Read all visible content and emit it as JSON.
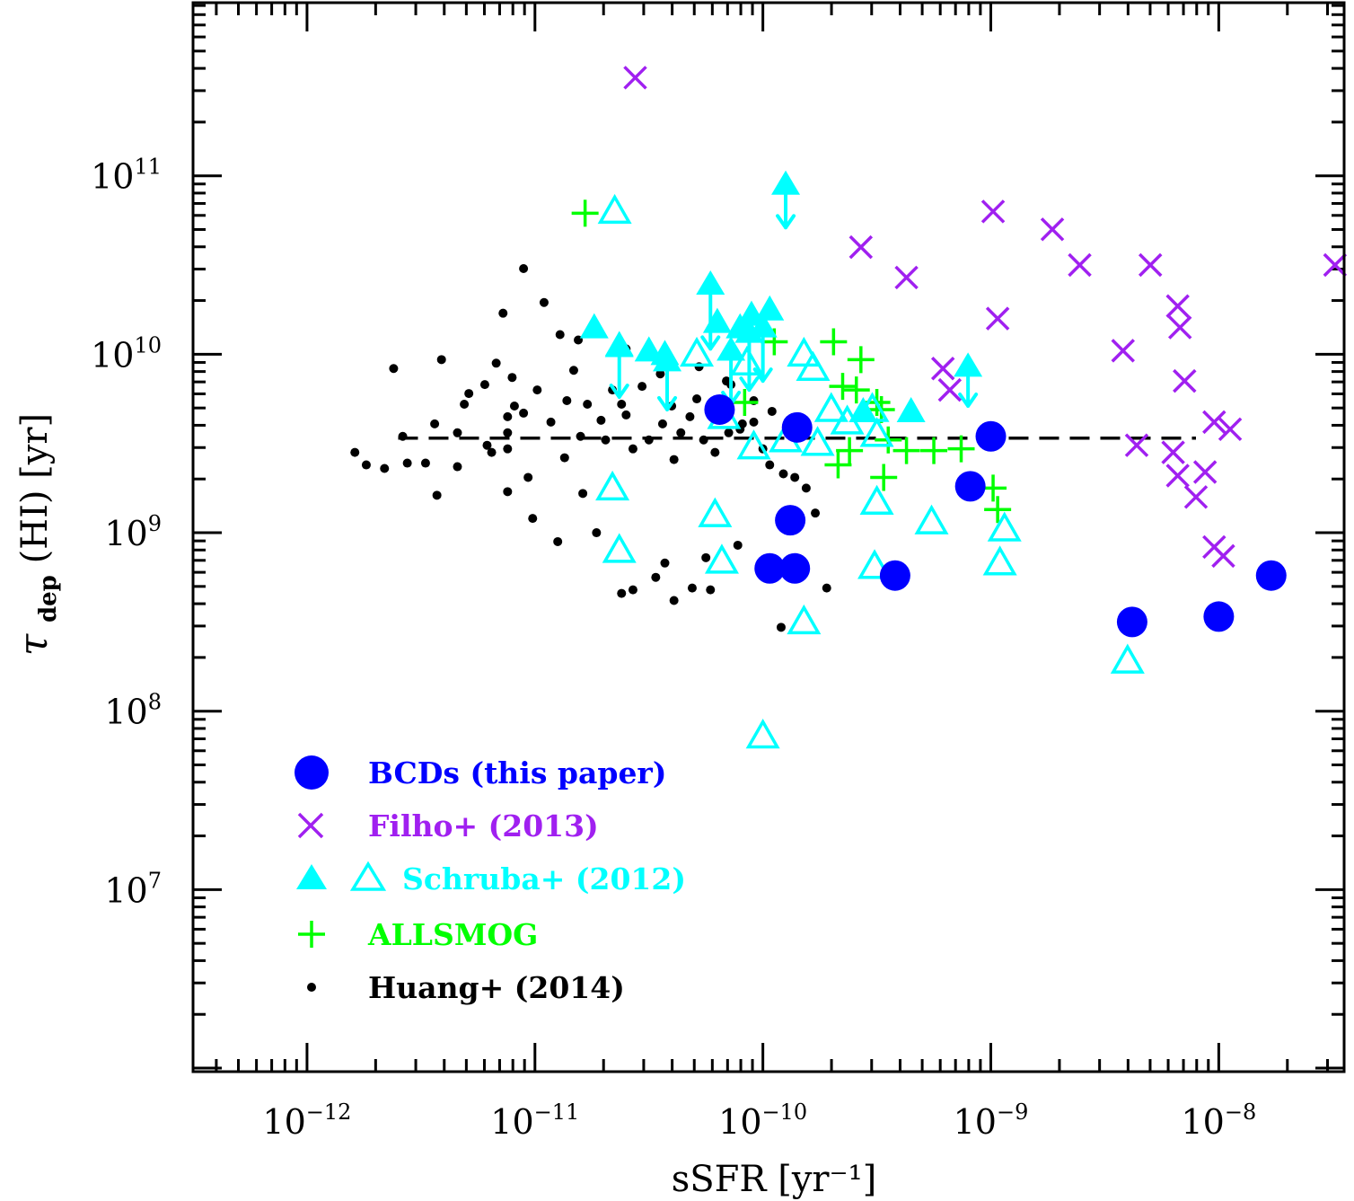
{
  "chart_data": {
    "type": "scatter",
    "title": "",
    "xlabel": "sSFR [yr⁻¹]",
    "ylabel": "τdep (HI) [yr]",
    "ylabel_parts": {
      "symbol": "τ",
      "subscript": "dep",
      "rest": " (HI) [yr]"
    },
    "x_scale": "log",
    "y_scale": "log",
    "xlim_log10": [
      -12.5,
      -7.45
    ],
    "ylim_log10": [
      5.98,
      11.97
    ],
    "x_ticks": [
      {
        "exp": -12,
        "base": "10",
        "sup": "−12"
      },
      {
        "exp": -11,
        "base": "10",
        "sup": "−11"
      },
      {
        "exp": -10,
        "base": "10",
        "sup": "−10"
      },
      {
        "exp": -9,
        "base": "10",
        "sup": "−9"
      },
      {
        "exp": -8,
        "base": "10",
        "sup": "−8"
      }
    ],
    "y_ticks": [
      {
        "exp": 7,
        "base": "10",
        "sup": "7"
      },
      {
        "exp": 8,
        "base": "10",
        "sup": "8"
      },
      {
        "exp": 9,
        "base": "10",
        "sup": "9"
      },
      {
        "exp": 10,
        "base": "10",
        "sup": "10"
      },
      {
        "exp": 11,
        "base": "10",
        "sup": "11"
      }
    ],
    "reference_line": {
      "style": "dashed",
      "log_y": 9.53,
      "log_x_range": [
        -11.6,
        -8.1
      ]
    },
    "legend_position": "bottom-left",
    "series": [
      {
        "name": "BCDs (this paper)",
        "color": "#0000ff",
        "marker": "filled-circle",
        "points_log": [
          [
            -10.19,
            9.69
          ],
          [
            -9.85,
            9.59
          ],
          [
            -9.0,
            9.54
          ],
          [
            -9.09,
            9.26
          ],
          [
            -9.88,
            9.07
          ],
          [
            -9.97,
            8.8
          ],
          [
            -9.86,
            8.8
          ],
          [
            -9.42,
            8.76
          ],
          [
            -8.38,
            8.5
          ],
          [
            -8.0,
            8.53
          ],
          [
            -7.77,
            8.76
          ]
        ]
      },
      {
        "name": "Filho+ (2013)",
        "color": "#a020f0",
        "marker": "x",
        "points_log": [
          [
            -10.56,
            11.55
          ],
          [
            -8.99,
            10.8
          ],
          [
            -8.73,
            10.7
          ],
          [
            -9.57,
            10.6
          ],
          [
            -9.37,
            10.43
          ],
          [
            -8.61,
            10.5
          ],
          [
            -8.3,
            10.5
          ],
          [
            -7.49,
            10.5
          ],
          [
            -8.97,
            10.2
          ],
          [
            -8.18,
            10.27
          ],
          [
            -8.17,
            10.15
          ],
          [
            -9.21,
            9.92
          ],
          [
            -8.42,
            10.02
          ],
          [
            -8.15,
            9.85
          ],
          [
            -9.18,
            9.8
          ],
          [
            -8.02,
            9.62
          ],
          [
            -7.95,
            9.58
          ],
          [
            -8.36,
            9.49
          ],
          [
            -8.2,
            9.45
          ],
          [
            -8.06,
            9.34
          ],
          [
            -8.18,
            9.32
          ],
          [
            -8.1,
            9.2
          ],
          [
            -8.02,
            8.92
          ],
          [
            -7.98,
            8.87
          ]
        ]
      },
      {
        "name": "Schruba+ (2012) open",
        "color": "#00ffff",
        "marker": "open-triangle",
        "points_log": [
          [
            -10.65,
            10.8
          ],
          [
            -10.29,
            10.0
          ],
          [
            -10.17,
            9.65
          ],
          [
            -10.07,
            9.95
          ],
          [
            -9.82,
            10.0
          ],
          [
            -9.78,
            9.92
          ],
          [
            -9.76,
            9.5
          ],
          [
            -9.63,
            9.62
          ],
          [
            -9.52,
            9.69
          ],
          [
            -9.5,
            9.55
          ],
          [
            -10.66,
            9.25
          ],
          [
            -10.21,
            9.1
          ],
          [
            -9.5,
            9.17
          ],
          [
            -9.26,
            9.06
          ],
          [
            -10.63,
            8.9
          ],
          [
            -10.18,
            8.84
          ],
          [
            -9.51,
            8.81
          ],
          [
            -8.96,
            8.83
          ],
          [
            -8.94,
            9.02
          ],
          [
            -9.82,
            8.5
          ],
          [
            -8.4,
            8.28
          ],
          [
            -10.0,
            7.86
          ],
          [
            -9.9,
            9.52
          ],
          [
            -9.7,
            9.69
          ],
          [
            -10.04,
            9.48
          ]
        ]
      },
      {
        "name": "Schruba+ (2012) filled",
        "color": "#00ffff",
        "marker": "filled-triangle",
        "points_log": [
          [
            -10.74,
            10.15
          ],
          [
            -10.63,
            10.05
          ],
          [
            -10.5,
            10.02
          ],
          [
            -10.43,
            10.0
          ],
          [
            -10.1,
            10.15
          ],
          [
            -10.2,
            10.18
          ],
          [
            -10.05,
            10.22
          ],
          [
            -9.97,
            10.25
          ],
          [
            -9.56,
            9.68
          ],
          [
            -9.35,
            9.68
          ]
        ]
      },
      {
        "name": "Schruba+ (2012) limits",
        "color": "#00ffff",
        "marker": "upper-limit",
        "points_log": [
          [
            -10.63,
            10.12,
            9.76
          ],
          [
            -10.42,
            10.04,
            9.69
          ],
          [
            -10.23,
            10.47,
            10.03
          ],
          [
            -10.14,
            10.1,
            9.72
          ],
          [
            -10.06,
            10.2,
            9.8
          ],
          [
            -10.0,
            10.23,
            9.85
          ],
          [
            -9.9,
            11.03,
            10.71
          ],
          [
            -9.1,
            10.01,
            9.71
          ]
        ]
      },
      {
        "name": "ALLSMOG",
        "color": "#00ff00",
        "marker": "plus",
        "points_log": [
          [
            -10.78,
            10.79
          ],
          [
            -10.08,
            9.73
          ],
          [
            -9.95,
            10.07
          ],
          [
            -9.69,
            10.07
          ],
          [
            -9.57,
            9.97
          ],
          [
            -9.65,
            9.82
          ],
          [
            -9.59,
            9.8
          ],
          [
            -9.5,
            9.73
          ],
          [
            -9.48,
            9.69
          ],
          [
            -9.62,
            9.46
          ],
          [
            -9.45,
            9.52
          ],
          [
            -9.67,
            9.38
          ],
          [
            -9.47,
            9.31
          ],
          [
            -9.37,
            9.46
          ],
          [
            -9.25,
            9.46
          ],
          [
            -9.13,
            9.47
          ],
          [
            -8.99,
            9.25
          ],
          [
            -8.97,
            9.13
          ]
        ]
      },
      {
        "name": "Huang+ (2014)",
        "color": "#000000",
        "marker": "dot",
        "points_log": [
          [
            -11.62,
            9.92
          ],
          [
            -11.41,
            9.97
          ],
          [
            -11.31,
            9.72
          ],
          [
            -11.48,
            9.39
          ],
          [
            -11.34,
            9.56
          ],
          [
            -11.19,
            9.45
          ],
          [
            -11.21,
            9.49
          ],
          [
            -11.17,
            9.95
          ],
          [
            -11.12,
            9.47
          ],
          [
            -11.12,
            9.65
          ],
          [
            -11.09,
            9.71
          ],
          [
            -11.05,
            9.67
          ],
          [
            -11.12,
            9.56
          ],
          [
            -11.03,
            9.31
          ],
          [
            -11.05,
            10.48
          ],
          [
            -11.14,
            10.23
          ],
          [
            -10.96,
            10.29
          ],
          [
            -10.93,
            9.62
          ],
          [
            -10.89,
            10.11
          ],
          [
            -10.81,
            10.08
          ],
          [
            -10.83,
            9.91
          ],
          [
            -10.77,
            9.72
          ],
          [
            -10.69,
            9.52
          ],
          [
            -10.57,
            9.47
          ],
          [
            -10.5,
            9.52
          ],
          [
            -10.44,
            9.61
          ],
          [
            -10.39,
            9.41
          ],
          [
            -10.36,
            9.56
          ],
          [
            -10.32,
            9.65
          ],
          [
            -10.26,
            9.52
          ],
          [
            -10.21,
            9.45
          ],
          [
            -10.15,
            9.56
          ],
          [
            -10.09,
            9.61
          ],
          [
            -10.04,
            9.62
          ],
          [
            -10.0,
            9.47
          ],
          [
            -9.97,
            9.38
          ],
          [
            -9.91,
            9.33
          ],
          [
            -9.86,
            9.31
          ],
          [
            -9.81,
            9.25
          ],
          [
            -9.77,
            9.11
          ],
          [
            -10.25,
            8.86
          ],
          [
            -10.47,
            8.75
          ],
          [
            -10.57,
            8.68
          ],
          [
            -10.62,
            8.66
          ],
          [
            -10.43,
            8.83
          ],
          [
            -10.23,
            8.68
          ],
          [
            -10.11,
            8.93
          ],
          [
            -10.0,
            8.78
          ],
          [
            -10.39,
            8.62
          ],
          [
            -10.31,
            8.69
          ],
          [
            -9.92,
            8.47
          ],
          [
            -10.14,
            9.83
          ],
          [
            -10.29,
            9.75
          ],
          [
            -10.45,
            9.89
          ],
          [
            -10.53,
            9.82
          ],
          [
            -10.62,
            9.72
          ],
          [
            -10.71,
            9.63
          ],
          [
            -10.8,
            9.54
          ],
          [
            -10.87,
            9.42
          ],
          [
            -10.79,
            9.22
          ],
          [
            -10.73,
            9.0
          ],
          [
            -10.9,
            8.95
          ],
          [
            -11.01,
            9.08
          ],
          [
            -11.12,
            9.23
          ],
          [
            -11.34,
            9.37
          ],
          [
            -11.43,
            9.21
          ],
          [
            -11.56,
            9.39
          ],
          [
            -11.66,
            9.36
          ],
          [
            -11.74,
            9.38
          ],
          [
            -11.79,
            9.45
          ],
          [
            -11.58,
            9.54
          ],
          [
            -11.44,
            9.61
          ],
          [
            -11.29,
            9.78
          ],
          [
            -11.22,
            9.83
          ],
          [
            -11.1,
            9.87
          ],
          [
            -10.99,
            9.8
          ],
          [
            -10.86,
            9.74
          ],
          [
            -10.6,
            9.66
          ],
          [
            -10.4,
            9.71
          ],
          [
            -10.28,
            9.93
          ],
          [
            -10.16,
            9.85
          ],
          [
            -10.04,
            9.74
          ],
          [
            -9.96,
            9.68
          ],
          [
            -10.6,
            10.03
          ],
          [
            -10.66,
            9.8
          ],
          [
            -10.1,
            9.58
          ],
          [
            -9.72,
            8.69
          ]
        ]
      }
    ]
  },
  "legend": [
    {
      "label": "BCDs (this paper)",
      "color": "#0000ff"
    },
    {
      "label": "Filho+ (2013)",
      "color": "#a020f0"
    },
    {
      "label": "Schruba+ (2012)",
      "color": "#00ffff"
    },
    {
      "label": "ALLSMOG",
      "color": "#00ff00"
    },
    {
      "label": "Huang+ (2014)",
      "color": "#000000"
    }
  ]
}
